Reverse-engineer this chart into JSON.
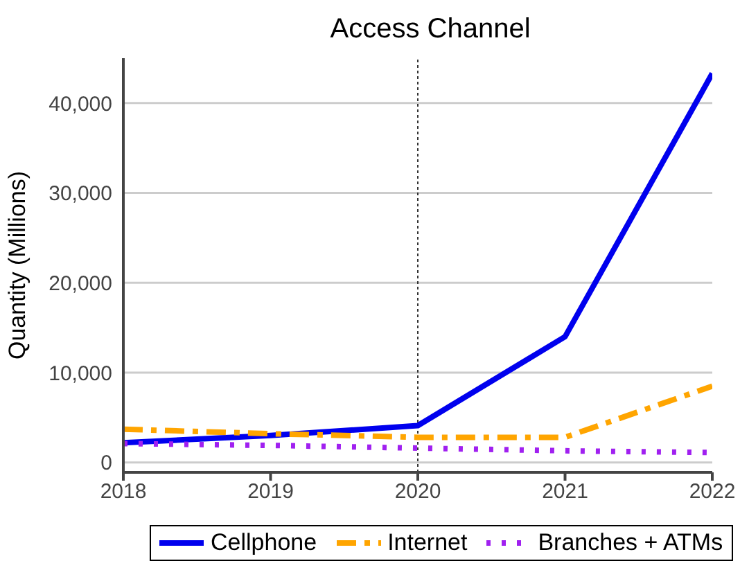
{
  "chart_data": {
    "type": "line",
    "title": "Access Channel",
    "ylabel": "Quantity (Millions)",
    "x": [
      2018,
      2019,
      2020,
      2021,
      2022
    ],
    "xlim": [
      2018,
      2022
    ],
    "xticks": [
      2018,
      2019,
      2020,
      2021,
      2022
    ],
    "ylim": [
      -1100,
      45000
    ],
    "yticks": [
      {
        "value": 0,
        "label": "0"
      },
      {
        "value": 10000,
        "label": "10,000"
      },
      {
        "value": 20000,
        "label": "20,000"
      },
      {
        "value": 30000,
        "label": "30,000"
      },
      {
        "value": 40000,
        "label": "40,000"
      }
    ],
    "grid": "y",
    "legend": "bottom",
    "marker": "none",
    "ref_lines": [
      {
        "axis": "x",
        "value": 2020,
        "color": "#333333",
        "line_style": "dotted"
      }
    ],
    "series": [
      {
        "name": "Cellphone",
        "color": "#0000ee",
        "line_style": "solid",
        "values": [
          2200,
          3000,
          4100,
          14000,
          43300
        ]
      },
      {
        "name": "Internet",
        "color": "#ffa500",
        "line_style": "dashed",
        "values": [
          3700,
          3200,
          2800,
          2800,
          8500
        ]
      },
      {
        "name": "Branches + ATMs",
        "color": "#a020f0",
        "line_style": "dotted",
        "values": [
          2100,
          1900,
          1600,
          1300,
          1100
        ]
      }
    ]
  }
}
